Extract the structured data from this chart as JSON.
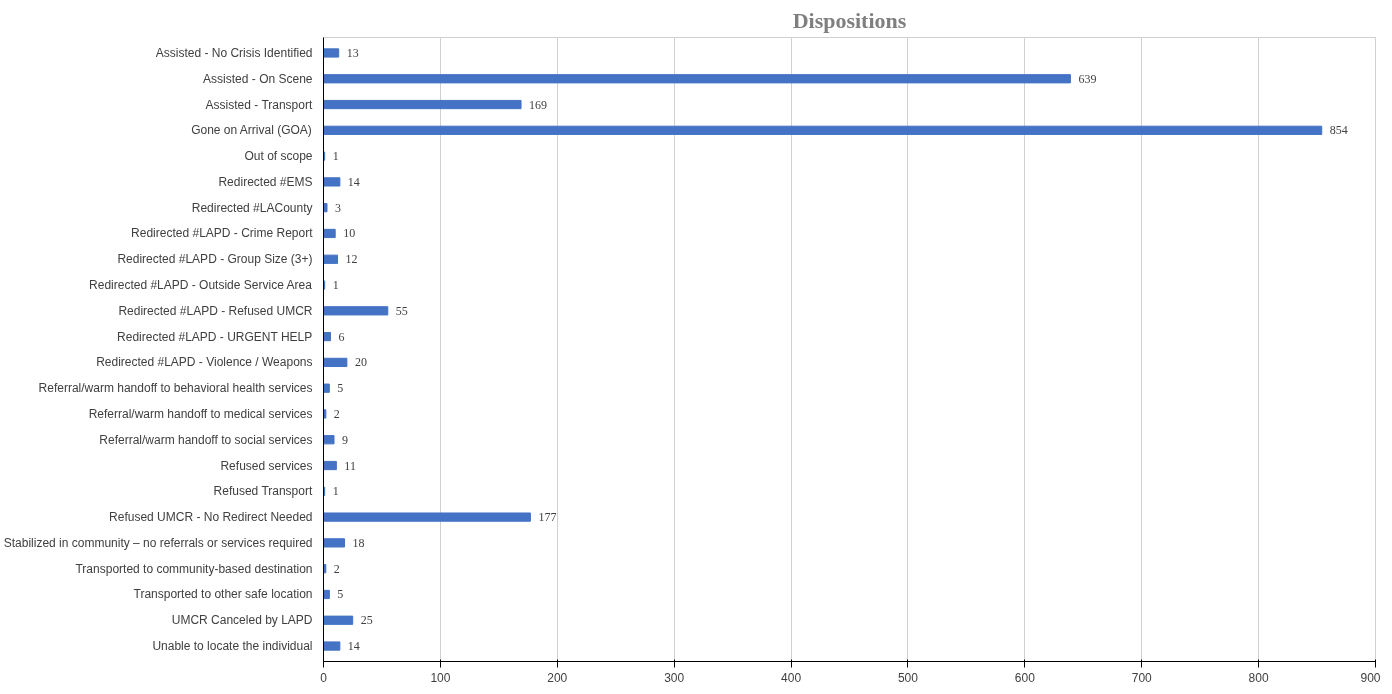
{
  "chart_data": {
    "type": "bar",
    "orientation": "horizontal",
    "title": "Dispositions",
    "categories": [
      "Assisted - No Crisis Identified",
      "Assisted - On Scene",
      "Assisted - Transport",
      "Gone on Arrival (GOA)",
      "Out of scope",
      "Redirected #EMS",
      "Redirected #LACounty",
      "Redirected #LAPD - Crime Report",
      "Redirected #LAPD - Group Size (3+)",
      "Redirected #LAPD - Outside Service Area",
      "Redirected #LAPD - Refused UMCR",
      "Redirected #LAPD - URGENT HELP",
      "Redirected #LAPD - Violence / Weapons",
      "Referral/warm handoff to behavioral health services",
      "Referral/warm handoff to medical services",
      "Referral/warm handoff to social services",
      "Refused services",
      "Refused Transport",
      "Refused UMCR - No Redirect Needed",
      "Stabilized in community – no referrals or services required",
      "Transported to community-based destination",
      "Transported to other safe location",
      "UMCR Canceled by LAPD",
      "Unable to locate the individual"
    ],
    "values": [
      13,
      639,
      169,
      854,
      1,
      14,
      3,
      10,
      12,
      1,
      55,
      6,
      20,
      5,
      2,
      9,
      11,
      1,
      177,
      18,
      2,
      5,
      25,
      14
    ],
    "color": "#4472c4",
    "xlim": [
      0,
      900
    ],
    "xticks": [
      0,
      100,
      200,
      300,
      400,
      500,
      600,
      700,
      800,
      900
    ],
    "grid": "x",
    "data_labels": true
  }
}
